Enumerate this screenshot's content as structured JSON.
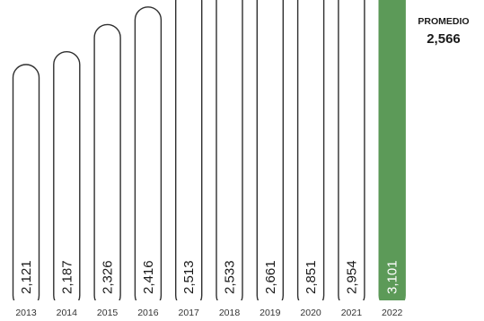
{
  "chart_data": {
    "type": "bar",
    "categories": [
      "2013",
      "2014",
      "2015",
      "2016",
      "2017",
      "2018",
      "2019",
      "2020",
      "2021",
      "2022"
    ],
    "values": [
      2121,
      2187,
      2326,
      2416,
      2513,
      2533,
      2661,
      2851,
      2954,
      3101
    ],
    "value_labels": [
      "2,121",
      "2,187",
      "2,326",
      "2,416",
      "2,513",
      "2,533",
      "2,661",
      "2,851",
      "2,954",
      "3,101"
    ],
    "highlight_category": "2022",
    "colors": {
      "bar_fill": "#ffffff",
      "bar_stroke": "#2f2f2f",
      "highlight_fill": "#5c9a58",
      "average_line": "#c0392b"
    },
    "reference_line": {
      "label": "PROMEDIO",
      "value": 2566,
      "value_label": "2,566",
      "style": "dashed"
    },
    "grid": false,
    "legend": "none"
  }
}
